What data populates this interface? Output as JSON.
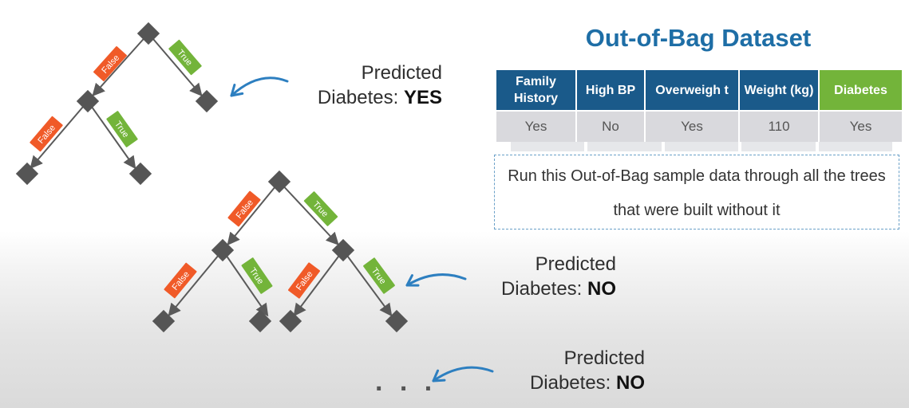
{
  "colors": {
    "node": "#555555",
    "false_label": "#f05a28",
    "true_label": "#73b43a",
    "arrow": "#2d7fc0",
    "edge": "#5a5a5a"
  },
  "branch_labels": {
    "false": "False",
    "true": "True"
  },
  "predictions": [
    {
      "line1": "Predicted",
      "prefix": "Diabetes: ",
      "value": "YES"
    },
    {
      "line1": "Predicted",
      "prefix": "Diabetes: ",
      "value": "NO"
    },
    {
      "line1": "Predicted",
      "prefix": "Diabetes: ",
      "value": "NO"
    }
  ],
  "ellipsis": ". . .",
  "oob": {
    "title": "Out-of-Bag Dataset",
    "headers": [
      "Family History",
      "High BP",
      "Overweigh t",
      "Weight (kg)",
      "Diabetes"
    ],
    "row": [
      "Yes",
      "No",
      "Yes",
      "110",
      "Yes"
    ],
    "note": "Run this Out-of-Bag sample data through all the trees that were built without it"
  }
}
